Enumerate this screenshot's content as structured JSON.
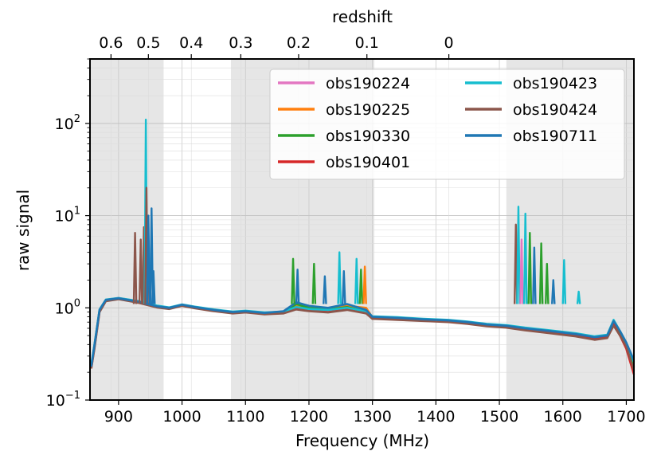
{
  "chart_data": {
    "type": "line",
    "title": "",
    "xlabel": "Frequency (MHz)",
    "ylabel": "raw signal",
    "top_axis_label": "redshift",
    "xlim": [
      855,
      1712
    ],
    "ylim": [
      0.1,
      500
    ],
    "yscale": "log",
    "grid": true,
    "legend_position": "top-right",
    "legend_columns": 2,
    "x_ticks": [
      900,
      1000,
      1100,
      1200,
      1300,
      1400,
      1500,
      1600,
      1700
    ],
    "y_ticks": [
      {
        "value": 0.1,
        "base": "10",
        "exp": "−1"
      },
      {
        "value": 1,
        "base": "10",
        "exp": "0"
      },
      {
        "value": 10,
        "base": "10",
        "exp": "1"
      },
      {
        "value": 100,
        "base": "10",
        "exp": "2"
      }
    ],
    "top_ticks": [
      {
        "label": "0.6",
        "freq": 888.1
      },
      {
        "label": "0.5",
        "freq": 947.0
      },
      {
        "label": "0.4",
        "freq": 1014.6
      },
      {
        "label": "0.3",
        "freq": 1092.6
      },
      {
        "label": "0.2",
        "freq": 1183.7
      },
      {
        "label": "0.1",
        "freq": 1291.3
      },
      {
        "label": "0",
        "freq": 1420.4
      }
    ],
    "shaded_bands_mhz": [
      [
        855,
        971
      ],
      [
        1077,
        1303
      ],
      [
        1511,
        1712
      ]
    ],
    "series": [
      {
        "name": "obs190224",
        "color": "#e377c2",
        "x": [
          857,
          862,
          870,
          880,
          900,
          930,
          960,
          980,
          1000,
          1020,
          1050,
          1080,
          1100,
          1130,
          1160,
          1180,
          1200,
          1230,
          1260,
          1290,
          1300,
          1340,
          1380,
          1420,
          1450,
          1480,
          1510,
          1540,
          1580,
          1620,
          1650,
          1670,
          1680,
          1690,
          1700,
          1712
        ],
        "y": [
          0.24,
          0.4,
          0.95,
          1.22,
          1.28,
          1.18,
          1.05,
          1.0,
          1.08,
          1.02,
          0.95,
          0.9,
          0.92,
          0.88,
          0.9,
          1.0,
          0.95,
          0.92,
          0.98,
          0.9,
          0.8,
          0.78,
          0.75,
          0.73,
          0.7,
          0.66,
          0.64,
          0.6,
          0.56,
          0.52,
          0.48,
          0.5,
          0.7,
          0.55,
          0.42,
          0.25
        ]
      },
      {
        "name": "obs190225",
        "color": "#ff7f0e",
        "x": [
          857,
          862,
          870,
          880,
          900,
          930,
          960,
          980,
          1000,
          1020,
          1050,
          1080,
          1100,
          1130,
          1160,
          1180,
          1200,
          1230,
          1260,
          1290,
          1300,
          1340,
          1380,
          1420,
          1450,
          1480,
          1510,
          1540,
          1580,
          1620,
          1650,
          1670,
          1680,
          1690,
          1700,
          1712
        ],
        "y": [
          0.23,
          0.38,
          0.93,
          1.2,
          1.27,
          1.17,
          1.04,
          1.0,
          1.07,
          1.01,
          0.94,
          0.89,
          0.91,
          0.87,
          0.9,
          1.05,
          0.98,
          0.95,
          1.05,
          1.0,
          0.79,
          0.77,
          0.74,
          0.72,
          0.69,
          0.65,
          0.63,
          0.59,
          0.55,
          0.51,
          0.47,
          0.5,
          0.72,
          0.55,
          0.4,
          0.22
        ]
      },
      {
        "name": "obs190330",
        "color": "#2ca02c",
        "x": [
          857,
          862,
          870,
          880,
          900,
          930,
          960,
          980,
          1000,
          1020,
          1050,
          1080,
          1100,
          1130,
          1160,
          1180,
          1200,
          1230,
          1260,
          1290,
          1300,
          1340,
          1380,
          1420,
          1450,
          1480,
          1510,
          1540,
          1580,
          1620,
          1650,
          1670,
          1680,
          1690,
          1700,
          1712
        ],
        "y": [
          0.23,
          0.39,
          0.94,
          1.21,
          1.26,
          1.16,
          1.03,
          0.99,
          1.07,
          1.01,
          0.94,
          0.89,
          0.9,
          0.87,
          0.89,
          1.1,
          1.0,
          0.96,
          1.02,
          0.92,
          0.78,
          0.76,
          0.74,
          0.72,
          0.69,
          0.65,
          0.63,
          0.6,
          0.55,
          0.51,
          0.47,
          0.5,
          0.68,
          0.52,
          0.4,
          0.23
        ]
      },
      {
        "name": "obs190401",
        "color": "#d62728",
        "x": [
          857,
          862,
          870,
          880,
          900,
          930,
          960,
          980,
          1000,
          1020,
          1050,
          1080,
          1100,
          1130,
          1160,
          1180,
          1200,
          1230,
          1260,
          1290,
          1300,
          1340,
          1380,
          1420,
          1450,
          1480,
          1510,
          1540,
          1580,
          1620,
          1650,
          1670,
          1680,
          1690,
          1700,
          1712
        ],
        "y": [
          0.22,
          0.37,
          0.92,
          1.2,
          1.25,
          1.15,
          1.02,
          0.98,
          1.06,
          1.0,
          0.93,
          0.88,
          0.9,
          0.86,
          0.88,
          0.98,
          0.94,
          0.9,
          0.96,
          0.88,
          0.77,
          0.75,
          0.73,
          0.71,
          0.68,
          0.64,
          0.62,
          0.58,
          0.54,
          0.5,
          0.46,
          0.48,
          0.66,
          0.5,
          0.36,
          0.19
        ]
      },
      {
        "name": "obs190423",
        "color": "#17becf",
        "x": [
          857,
          862,
          870,
          880,
          900,
          930,
          960,
          980,
          1000,
          1020,
          1050,
          1080,
          1100,
          1130,
          1160,
          1180,
          1200,
          1230,
          1260,
          1290,
          1300,
          1340,
          1380,
          1420,
          1450,
          1480,
          1510,
          1540,
          1580,
          1620,
          1650,
          1670,
          1680,
          1690,
          1700,
          1712
        ],
        "y": [
          0.24,
          0.4,
          0.96,
          1.23,
          1.28,
          1.19,
          1.06,
          1.01,
          1.09,
          1.03,
          0.96,
          0.91,
          0.93,
          0.89,
          0.91,
          1.02,
          0.97,
          0.95,
          1.0,
          0.92,
          0.81,
          0.79,
          0.76,
          0.74,
          0.71,
          0.67,
          0.65,
          0.61,
          0.57,
          0.53,
          0.49,
          0.51,
          0.74,
          0.56,
          0.42,
          0.26
        ]
      },
      {
        "name": "obs190424",
        "color": "#8c564b",
        "x": [
          857,
          862,
          870,
          880,
          900,
          930,
          960,
          980,
          1000,
          1020,
          1050,
          1080,
          1100,
          1130,
          1160,
          1180,
          1200,
          1230,
          1260,
          1290,
          1300,
          1340,
          1380,
          1420,
          1450,
          1480,
          1510,
          1540,
          1580,
          1620,
          1650,
          1670,
          1680,
          1690,
          1700,
          1712
        ],
        "y": [
          0.22,
          0.36,
          0.9,
          1.18,
          1.24,
          1.14,
          1.01,
          0.97,
          1.05,
          0.99,
          0.92,
          0.87,
          0.89,
          0.85,
          0.87,
          0.96,
          0.92,
          0.89,
          0.95,
          0.87,
          0.76,
          0.74,
          0.72,
          0.7,
          0.67,
          0.63,
          0.61,
          0.57,
          0.53,
          0.49,
          0.45,
          0.47,
          0.64,
          0.5,
          0.38,
          0.21
        ]
      },
      {
        "name": "obs190711",
        "color": "#1f77b4",
        "x": [
          857,
          862,
          870,
          880,
          900,
          930,
          960,
          980,
          1000,
          1020,
          1050,
          1080,
          1100,
          1130,
          1160,
          1180,
          1200,
          1230,
          1260,
          1290,
          1300,
          1340,
          1380,
          1420,
          1450,
          1480,
          1510,
          1540,
          1580,
          1620,
          1650,
          1670,
          1680,
          1690,
          1700,
          1712
        ],
        "y": [
          0.23,
          0.39,
          0.95,
          1.22,
          1.27,
          1.17,
          1.04,
          1.0,
          1.08,
          1.02,
          0.95,
          0.9,
          0.92,
          0.88,
          0.92,
          1.15,
          1.05,
          1.0,
          1.1,
          0.95,
          0.8,
          0.78,
          0.75,
          0.73,
          0.7,
          0.66,
          0.64,
          0.6,
          0.56,
          0.52,
          0.48,
          0.5,
          0.72,
          0.56,
          0.42,
          0.27
        ]
      }
    ],
    "spikes": [
      {
        "x": 926,
        "y": 6.5,
        "color": "#8c564b"
      },
      {
        "x": 935,
        "y": 5.5,
        "color": "#8c564b"
      },
      {
        "x": 940,
        "y": 7.5,
        "color": "#8c564b"
      },
      {
        "x": 943,
        "y": 110,
        "color": "#17becf"
      },
      {
        "x": 944,
        "y": 20,
        "color": "#8c564b"
      },
      {
        "x": 947,
        "y": 10,
        "color": "#1f77b4"
      },
      {
        "x": 952,
        "y": 12,
        "color": "#1f77b4"
      },
      {
        "x": 955,
        "y": 2.5,
        "color": "#1f77b4"
      },
      {
        "x": 1175,
        "y": 3.4,
        "color": "#2ca02c"
      },
      {
        "x": 1182,
        "y": 2.6,
        "color": "#1f77b4"
      },
      {
        "x": 1208,
        "y": 3.0,
        "color": "#2ca02c"
      },
      {
        "x": 1225,
        "y": 2.2,
        "color": "#1f77b4"
      },
      {
        "x": 1248,
        "y": 4.0,
        "color": "#17becf"
      },
      {
        "x": 1255,
        "y": 2.5,
        "color": "#1f77b4"
      },
      {
        "x": 1275,
        "y": 3.4,
        "color": "#17becf"
      },
      {
        "x": 1282,
        "y": 2.6,
        "color": "#2ca02c"
      },
      {
        "x": 1288,
        "y": 2.8,
        "color": "#ff7f0e"
      },
      {
        "x": 1526,
        "y": 8.0,
        "color": "#8c564b"
      },
      {
        "x": 1530,
        "y": 12.5,
        "color": "#17becf"
      },
      {
        "x": 1535,
        "y": 5.5,
        "color": "#e377c2"
      },
      {
        "x": 1541,
        "y": 10.5,
        "color": "#17becf"
      },
      {
        "x": 1548,
        "y": 6.5,
        "color": "#2ca02c"
      },
      {
        "x": 1555,
        "y": 4.5,
        "color": "#1f77b4"
      },
      {
        "x": 1566,
        "y": 5.0,
        "color": "#2ca02c"
      },
      {
        "x": 1575,
        "y": 3.0,
        "color": "#2ca02c"
      },
      {
        "x": 1585,
        "y": 2.0,
        "color": "#1f77b4"
      },
      {
        "x": 1602,
        "y": 3.3,
        "color": "#17becf"
      },
      {
        "x": 1625,
        "y": 1.5,
        "color": "#17becf"
      }
    ]
  }
}
